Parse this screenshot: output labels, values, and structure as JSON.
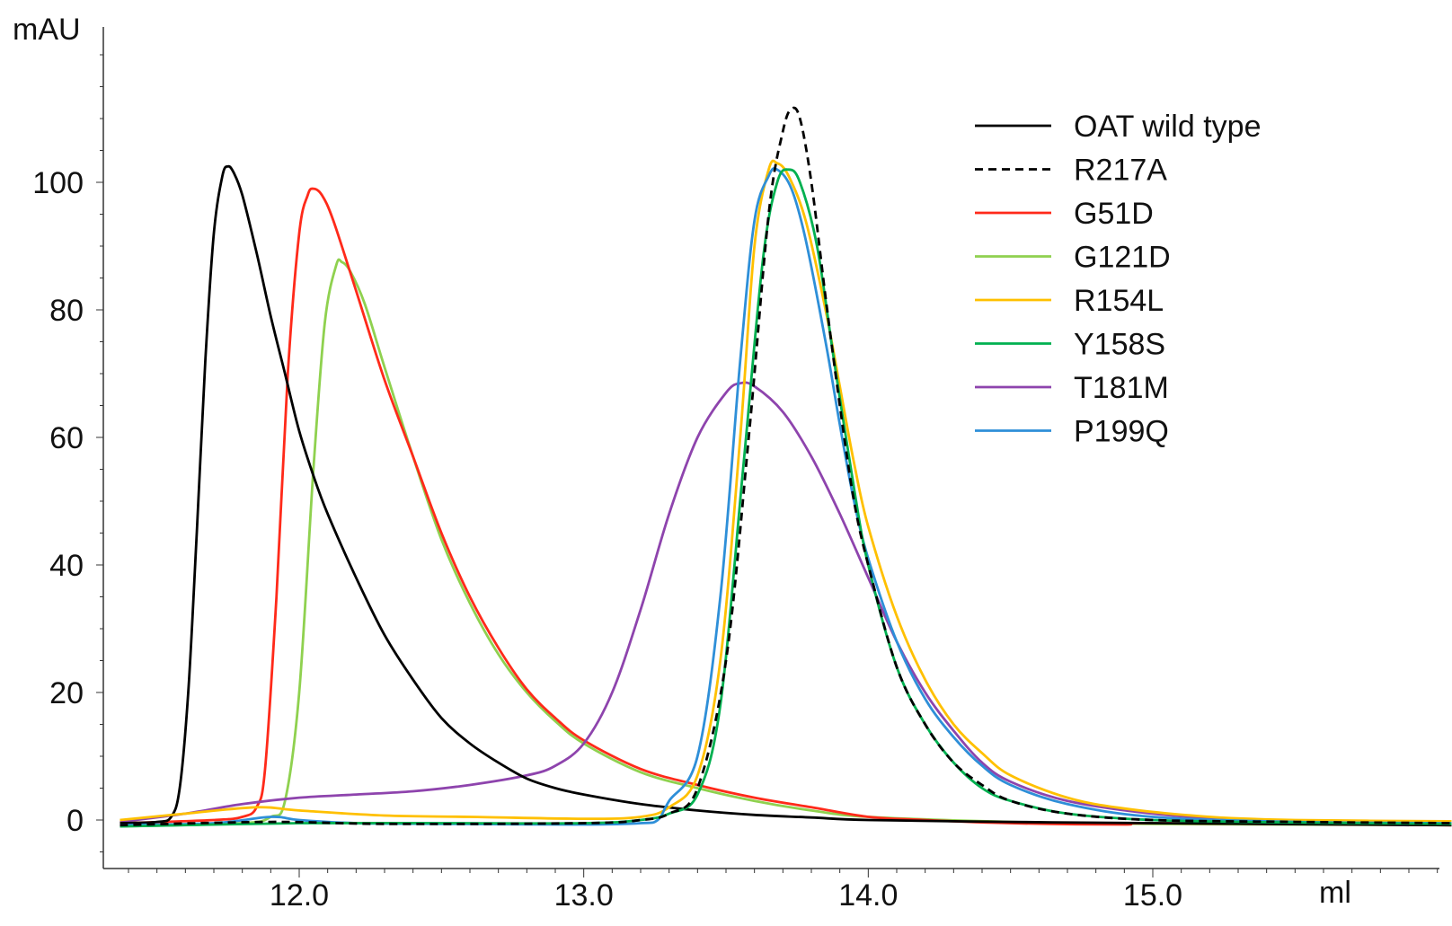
{
  "chart_data": {
    "type": "line",
    "title": "",
    "ylabel": "mAU",
    "xlabel": "ml",
    "xlim": [
      11.37,
      16.05
    ],
    "ylim": [
      -7,
      125
    ],
    "grid": false,
    "legend_position": "top-right",
    "x_ticks": [
      12.0,
      13.0,
      14.0,
      15.0
    ],
    "x_tick_labels": [
      "12.0",
      "13.0",
      "14.0",
      "15.0"
    ],
    "y_ticks": [
      0,
      20,
      40,
      60,
      80,
      100
    ],
    "y_tick_labels": [
      "0",
      "20",
      "40",
      "60",
      "80",
      "100"
    ],
    "series": [
      {
        "name": "OAT wild type",
        "color": "#000000",
        "dash": "solid",
        "points": [
          [
            11.37,
            -0.5
          ],
          [
            11.5,
            -0.3
          ],
          [
            11.55,
            0.5
          ],
          [
            11.58,
            5
          ],
          [
            11.61,
            20
          ],
          [
            11.64,
            45
          ],
          [
            11.67,
            72
          ],
          [
            11.7,
            92
          ],
          [
            11.73,
            101
          ],
          [
            11.75,
            102.5
          ],
          [
            11.77,
            101.5
          ],
          [
            11.8,
            98
          ],
          [
            11.85,
            89
          ],
          [
            11.9,
            79
          ],
          [
            11.95,
            70
          ],
          [
            12.0,
            61
          ],
          [
            12.05,
            54
          ],
          [
            12.1,
            48
          ],
          [
            12.2,
            38
          ],
          [
            12.3,
            29
          ],
          [
            12.4,
            22
          ],
          [
            12.5,
            16
          ],
          [
            12.6,
            12
          ],
          [
            12.7,
            9
          ],
          [
            12.8,
            6.5
          ],
          [
            12.9,
            5
          ],
          [
            13.0,
            4
          ],
          [
            13.2,
            2.5
          ],
          [
            13.4,
            1.5
          ],
          [
            13.6,
            0.8
          ],
          [
            13.8,
            0.4
          ],
          [
            14.0,
            0
          ],
          [
            14.5,
            -0.3
          ],
          [
            15.0,
            -0.5
          ],
          [
            16.05,
            -0.8
          ]
        ]
      },
      {
        "name": "R217A",
        "color": "#000000",
        "dash": "dashed",
        "points": [
          [
            11.37,
            -0.8
          ],
          [
            11.9,
            -0.3
          ],
          [
            12.3,
            -0.6
          ],
          [
            13.0,
            -0.5
          ],
          [
            13.2,
            0
          ],
          [
            13.3,
            1
          ],
          [
            13.4,
            5
          ],
          [
            13.5,
            25
          ],
          [
            13.58,
            60
          ],
          [
            13.65,
            95
          ],
          [
            13.7,
            108
          ],
          [
            13.73,
            111.5
          ],
          [
            13.76,
            110
          ],
          [
            13.8,
            100
          ],
          [
            13.85,
            82
          ],
          [
            13.9,
            65
          ],
          [
            13.95,
            50
          ],
          [
            14.0,
            40
          ],
          [
            14.1,
            24
          ],
          [
            14.2,
            15
          ],
          [
            14.3,
            9
          ],
          [
            14.4,
            5.5
          ],
          [
            14.5,
            3
          ],
          [
            14.7,
            1
          ],
          [
            15.0,
            0
          ],
          [
            15.5,
            -0.3
          ],
          [
            16.05,
            -0.5
          ]
        ]
      },
      {
        "name": "G51D",
        "color": "#ff2a1a",
        "dash": "solid",
        "points": [
          [
            11.37,
            -0.5
          ],
          [
            11.7,
            0
          ],
          [
            11.8,
            0.5
          ],
          [
            11.85,
            2
          ],
          [
            11.88,
            8
          ],
          [
            11.92,
            35
          ],
          [
            11.96,
            70
          ],
          [
            12.0,
            92
          ],
          [
            12.03,
            98
          ],
          [
            12.05,
            99
          ],
          [
            12.08,
            98
          ],
          [
            12.12,
            94
          ],
          [
            12.2,
            83
          ],
          [
            12.3,
            69
          ],
          [
            12.4,
            57
          ],
          [
            12.5,
            45
          ],
          [
            12.6,
            35
          ],
          [
            12.7,
            27
          ],
          [
            12.8,
            20.5
          ],
          [
            12.9,
            16
          ],
          [
            13.0,
            12.5
          ],
          [
            13.2,
            8
          ],
          [
            13.4,
            5.5
          ],
          [
            13.6,
            3.5
          ],
          [
            13.8,
            2
          ],
          [
            14.0,
            0.5
          ],
          [
            14.2,
            0
          ],
          [
            14.5,
            -0.5
          ],
          [
            14.9,
            -0.7
          ],
          [
            15.0,
            -0.5
          ],
          [
            16.05,
            -0.8
          ]
        ]
      },
      {
        "name": "G121D",
        "color": "#8fd14f",
        "dash": "solid",
        "points": [
          [
            11.37,
            -1
          ],
          [
            11.8,
            -0.5
          ],
          [
            11.9,
            0.5
          ],
          [
            11.95,
            3
          ],
          [
            12.0,
            20
          ],
          [
            12.05,
            55
          ],
          [
            12.09,
            78
          ],
          [
            12.13,
            87
          ],
          [
            12.15,
            87.5
          ],
          [
            12.18,
            86
          ],
          [
            12.23,
            81
          ],
          [
            12.3,
            71
          ],
          [
            12.4,
            57
          ],
          [
            12.5,
            44
          ],
          [
            12.6,
            34
          ],
          [
            12.7,
            26
          ],
          [
            12.8,
            20
          ],
          [
            12.9,
            15.5
          ],
          [
            13.0,
            12
          ],
          [
            13.2,
            7.5
          ],
          [
            13.4,
            5
          ],
          [
            13.6,
            3
          ],
          [
            13.8,
            1.5
          ],
          [
            14.0,
            0.5
          ],
          [
            14.5,
            -0.3
          ],
          [
            15.0,
            -0.6
          ],
          [
            16.05,
            -0.8
          ]
        ]
      },
      {
        "name": "R154L",
        "color": "#ffc000",
        "dash": "solid",
        "points": [
          [
            11.37,
            0
          ],
          [
            11.6,
            1
          ],
          [
            11.85,
            2
          ],
          [
            12.0,
            1.5
          ],
          [
            12.3,
            0.7
          ],
          [
            12.6,
            0.5
          ],
          [
            13.0,
            0.2
          ],
          [
            13.2,
            0.5
          ],
          [
            13.3,
            2
          ],
          [
            13.4,
            7
          ],
          [
            13.48,
            25
          ],
          [
            13.55,
            60
          ],
          [
            13.6,
            90
          ],
          [
            13.65,
            102
          ],
          [
            13.68,
            103
          ],
          [
            13.72,
            101
          ],
          [
            13.78,
            94
          ],
          [
            13.85,
            80
          ],
          [
            13.9,
            68
          ],
          [
            13.95,
            56
          ],
          [
            14.0,
            46
          ],
          [
            14.1,
            32
          ],
          [
            14.2,
            22
          ],
          [
            14.3,
            15
          ],
          [
            14.4,
            10.5
          ],
          [
            14.5,
            7
          ],
          [
            14.7,
            3.5
          ],
          [
            14.9,
            1.8
          ],
          [
            15.2,
            0.5
          ],
          [
            15.5,
            0
          ],
          [
            16.05,
            -0.2
          ]
        ]
      },
      {
        "name": "Y158S",
        "color": "#00b050",
        "dash": "solid",
        "points": [
          [
            11.37,
            -1
          ],
          [
            12.0,
            -0.5
          ],
          [
            12.5,
            -0.5
          ],
          [
            13.0,
            -0.5
          ],
          [
            13.2,
            0
          ],
          [
            13.3,
            1
          ],
          [
            13.4,
            4
          ],
          [
            13.48,
            18
          ],
          [
            13.56,
            55
          ],
          [
            13.63,
            88
          ],
          [
            13.68,
            100
          ],
          [
            13.72,
            102
          ],
          [
            13.76,
            100
          ],
          [
            13.82,
            90
          ],
          [
            13.88,
            72
          ],
          [
            13.95,
            52
          ],
          [
            14.0,
            40
          ],
          [
            14.1,
            24
          ],
          [
            14.2,
            15
          ],
          [
            14.3,
            9
          ],
          [
            14.4,
            5
          ],
          [
            14.5,
            3
          ],
          [
            14.7,
            1
          ],
          [
            15.0,
            0
          ],
          [
            15.5,
            -0.4
          ],
          [
            16.05,
            -0.6
          ]
        ]
      },
      {
        "name": "T181M",
        "color": "#8e44ad",
        "dash": "solid",
        "points": [
          [
            11.37,
            -0.3
          ],
          [
            11.6,
            1
          ],
          [
            11.8,
            2.5
          ],
          [
            12.0,
            3.5
          ],
          [
            12.2,
            4
          ],
          [
            12.4,
            4.5
          ],
          [
            12.6,
            5.5
          ],
          [
            12.8,
            7
          ],
          [
            12.9,
            8.5
          ],
          [
            13.0,
            12
          ],
          [
            13.1,
            20
          ],
          [
            13.2,
            33
          ],
          [
            13.3,
            48
          ],
          [
            13.4,
            60
          ],
          [
            13.5,
            67
          ],
          [
            13.55,
            68.5
          ],
          [
            13.6,
            68
          ],
          [
            13.7,
            64
          ],
          [
            13.8,
            57
          ],
          [
            13.9,
            48
          ],
          [
            14.0,
            38
          ],
          [
            14.1,
            28
          ],
          [
            14.2,
            20
          ],
          [
            14.3,
            14
          ],
          [
            14.4,
            9
          ],
          [
            14.5,
            6
          ],
          [
            14.7,
            3
          ],
          [
            15.0,
            1
          ],
          [
            15.3,
            0
          ],
          [
            15.6,
            -0.5
          ],
          [
            15.9,
            -0.8
          ]
        ]
      },
      {
        "name": "P199Q",
        "color": "#2e8fd8",
        "dash": "solid",
        "points": [
          [
            11.37,
            -0.8
          ],
          [
            11.7,
            -0.5
          ],
          [
            11.9,
            0.5
          ],
          [
            12.0,
            0
          ],
          [
            12.2,
            -0.5
          ],
          [
            12.5,
            -0.6
          ],
          [
            13.0,
            -0.7
          ],
          [
            13.2,
            -0.5
          ],
          [
            13.26,
            0
          ],
          [
            13.3,
            3
          ],
          [
            13.4,
            10
          ],
          [
            13.48,
            35
          ],
          [
            13.55,
            72
          ],
          [
            13.6,
            94
          ],
          [
            13.65,
            101
          ],
          [
            13.68,
            102
          ],
          [
            13.73,
            99
          ],
          [
            13.78,
            91
          ],
          [
            13.85,
            75
          ],
          [
            13.9,
            62
          ],
          [
            13.95,
            50
          ],
          [
            14.0,
            41
          ],
          [
            14.1,
            28
          ],
          [
            14.2,
            19
          ],
          [
            14.3,
            13
          ],
          [
            14.4,
            8.5
          ],
          [
            14.5,
            5.5
          ],
          [
            14.7,
            2.5
          ],
          [
            15.0,
            0.5
          ],
          [
            15.5,
            -0.3
          ],
          [
            16.05,
            -0.5
          ]
        ]
      }
    ]
  }
}
